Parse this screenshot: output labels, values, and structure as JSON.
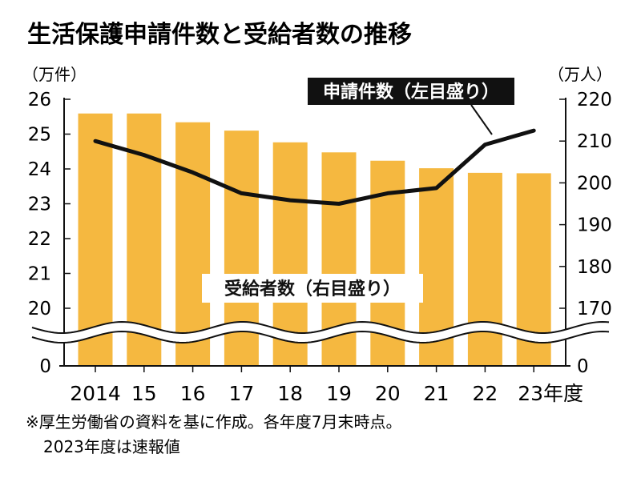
{
  "chart_data": {
    "type": "bar",
    "title": "生活保護申請件数と受給者数の推移",
    "categories": [
      "2014",
      "15",
      "16",
      "17",
      "18",
      "19",
      "20",
      "21",
      "22",
      "23年度"
    ],
    "series": [
      {
        "name": "受給者数（右目盛り）",
        "type": "bar",
        "axis": "right",
        "unit": "万人",
        "values": [
          216.6,
          216.6,
          214.5,
          212.5,
          209.7,
          207.3,
          205.3,
          203.5,
          202.4,
          202.3
        ]
      },
      {
        "name": "申請件数（左目盛り）",
        "type": "line",
        "axis": "left",
        "unit": "万件",
        "values": [
          24.8,
          24.4,
          23.9,
          23.3,
          23.1,
          23.0,
          23.3,
          23.45,
          24.7,
          25.1
        ]
      }
    ],
    "left_axis": {
      "unit_label": "（万件）",
      "ticks": [
        "26",
        "25",
        "24",
        "23",
        "22",
        "21",
        "20",
        "0"
      ],
      "range": [
        20,
        26
      ],
      "broken": true
    },
    "right_axis": {
      "unit_label": "（万人）",
      "ticks": [
        "220",
        "210",
        "200",
        "190",
        "180",
        "170",
        "0"
      ],
      "range": [
        160,
        220
      ],
      "broken": true
    },
    "line_label": "申請件数（左目盛り）",
    "bar_label": "受給者数（右目盛り）",
    "colors": {
      "bar": "#F5B840",
      "line": "#111111",
      "label_bg": "#111111",
      "label_text": "#ffffff"
    }
  },
  "footnote": {
    "line1": "※厚生労働省の資料を基に作成。各年度7月末時点。",
    "line2": "2023年度は速報値"
  }
}
